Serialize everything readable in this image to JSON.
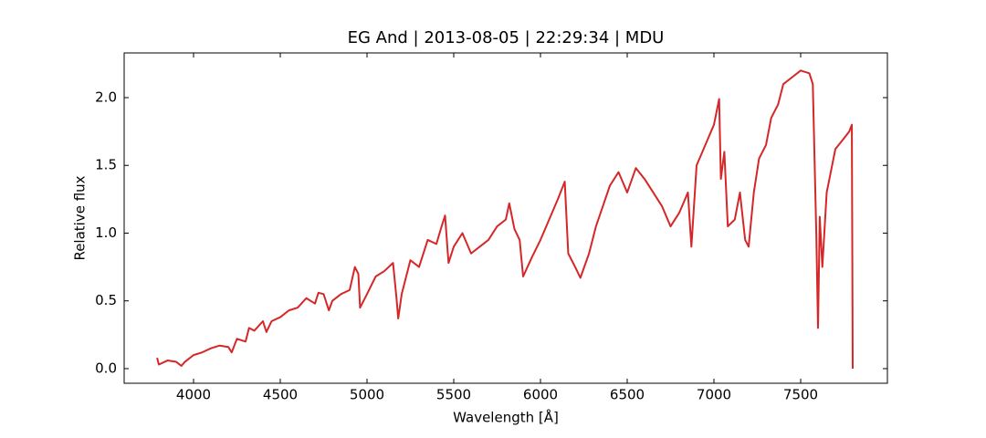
{
  "chart_data": {
    "type": "line",
    "title": "EG And | 2013-08-05 | 22:29:34 | MDU",
    "x_label": "Wavelength [Å]",
    "y_label": "Relative flux",
    "color": "#d62728",
    "x": [
      3790,
      3800,
      3850,
      3900,
      3930,
      3950,
      4000,
      4050,
      4100,
      4150,
      4200,
      4220,
      4250,
      4300,
      4320,
      4350,
      4400,
      4420,
      4450,
      4500,
      4550,
      4600,
      4650,
      4700,
      4720,
      4750,
      4780,
      4800,
      4850,
      4900,
      4930,
      4950,
      4960,
      5000,
      5050,
      5100,
      5150,
      5170,
      5180,
      5200,
      5250,
      5300,
      5350,
      5400,
      5430,
      5450,
      5470,
      5500,
      5550,
      5600,
      5650,
      5700,
      5750,
      5800,
      5820,
      5850,
      5880,
      5900,
      5950,
      6000,
      6050,
      6100,
      6140,
      6160,
      6200,
      6230,
      6280,
      6320,
      6360,
      6400,
      6450,
      6500,
      6550,
      6600,
      6650,
      6700,
      6750,
      6800,
      6850,
      6870,
      6900,
      6950,
      7000,
      7030,
      7040,
      7060,
      7080,
      7120,
      7150,
      7180,
      7200,
      7230,
      7260,
      7300,
      7330,
      7370,
      7400,
      7450,
      7500,
      7550,
      7570,
      7590,
      7600,
      7610,
      7625,
      7650,
      7700,
      7750,
      7780,
      7795,
      7800
    ],
    "values": [
      0.08,
      0.03,
      0.06,
      0.05,
      0.02,
      0.05,
      0.1,
      0.12,
      0.15,
      0.17,
      0.16,
      0.12,
      0.22,
      0.2,
      0.3,
      0.28,
      0.35,
      0.27,
      0.35,
      0.38,
      0.43,
      0.45,
      0.52,
      0.48,
      0.56,
      0.55,
      0.43,
      0.5,
      0.55,
      0.58,
      0.75,
      0.7,
      0.45,
      0.55,
      0.68,
      0.72,
      0.78,
      0.52,
      0.37,
      0.55,
      0.8,
      0.75,
      0.95,
      0.92,
      1.05,
      1.13,
      0.78,
      0.9,
      1.0,
      0.85,
      0.9,
      0.95,
      1.05,
      1.1,
      1.22,
      1.03,
      0.95,
      0.68,
      0.82,
      0.95,
      1.1,
      1.25,
      1.38,
      0.85,
      0.75,
      0.67,
      0.85,
      1.05,
      1.2,
      1.35,
      1.45,
      1.3,
      1.48,
      1.4,
      1.3,
      1.2,
      1.05,
      1.15,
      1.3,
      0.9,
      1.5,
      1.65,
      1.8,
      1.99,
      1.4,
      1.6,
      1.05,
      1.1,
      1.3,
      0.95,
      0.9,
      1.3,
      1.55,
      1.65,
      1.85,
      1.95,
      2.1,
      2.15,
      2.2,
      2.18,
      2.1,
      1.0,
      0.3,
      1.12,
      0.75,
      1.3,
      1.62,
      1.7,
      1.75,
      1.8,
      0.0
    ],
    "xlim": [
      3600,
      8000
    ],
    "xticks": [
      4000,
      4500,
      5000,
      5500,
      6000,
      6500,
      7000,
      7500
    ],
    "ylim": [
      -0.108,
      2.33
    ],
    "yticks": [
      {
        "value": 0,
        "label": "0.0"
      },
      {
        "value": 0.5,
        "label": "0.5"
      },
      {
        "value": 1,
        "label": "1.0"
      },
      {
        "value": 1.5,
        "label": "1.5"
      },
      {
        "value": 2,
        "label": "2.0"
      }
    ]
  }
}
